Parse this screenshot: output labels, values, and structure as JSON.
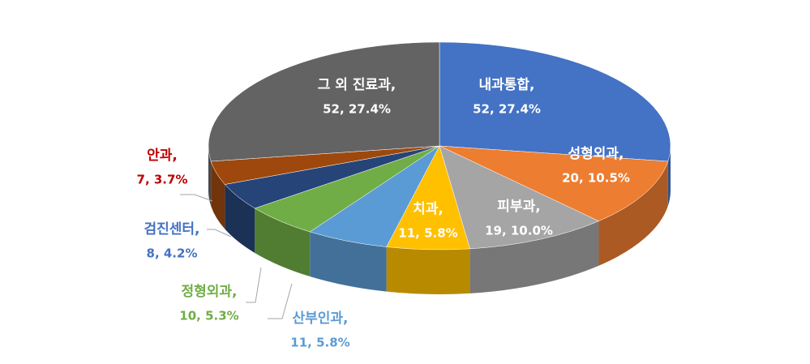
{
  "chart_data": {
    "type": "pie3d",
    "categories": [
      "내과통합,",
      "성형외과,",
      "피부과,",
      "치과,",
      "산부인과,",
      "정형외과,",
      "검진센터,",
      "안과,",
      "그 외 진료과,"
    ],
    "values": [
      52,
      20,
      19,
      11,
      11,
      10,
      8,
      7,
      52
    ],
    "value_labels": [
      "52, 27.4%",
      "20, 10.5%",
      "19, 10.0%",
      "11, 5.8%",
      "11, 5.8%",
      "10, 5.3%",
      "8, 4.2%",
      "7, 3.7%",
      "52, 27.4%"
    ],
    "colors": [
      "#4472c4",
      "#ed7d31",
      "#a5a5a5",
      "#ffc000",
      "#5b9bd5",
      "#70ad47",
      "#264478",
      "#9e480e",
      "#636363"
    ]
  }
}
